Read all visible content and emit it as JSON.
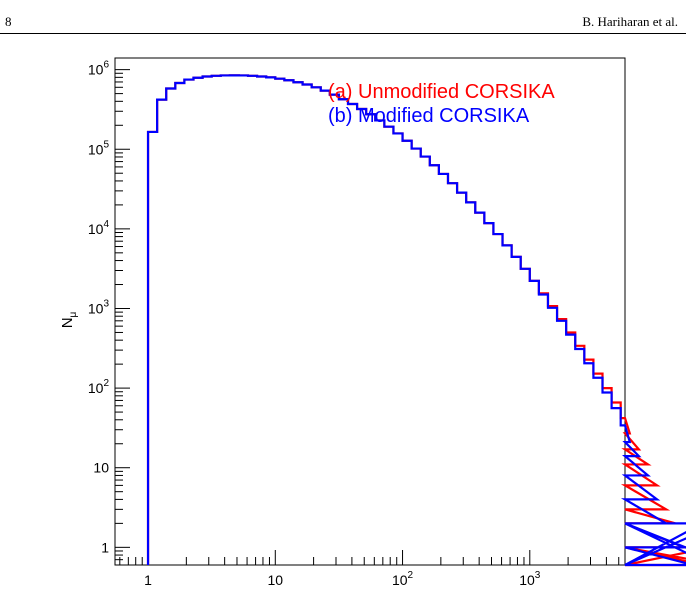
{
  "header": {
    "page_number": "8",
    "authors": "B. Hariharan et al."
  },
  "chart_data": {
    "type": "step",
    "ylabel": "N",
    "ylabel_subscript": "μ",
    "x_scale": "log",
    "y_scale": "log",
    "xlim": [
      0.55,
      5600
    ],
    "ylim": [
      0.6,
      1400000
    ],
    "x_ticks": [
      {
        "value": 1,
        "label": "1"
      },
      {
        "value": 10,
        "label": "10"
      },
      {
        "value": 100,
        "label": "10",
        "exp": "2"
      },
      {
        "value": 1000,
        "label": "10",
        "exp": "3"
      }
    ],
    "y_ticks": [
      {
        "value": 1,
        "label": "1"
      },
      {
        "value": 10,
        "label": "10"
      },
      {
        "value": 100,
        "label": "10",
        "exp": "2"
      },
      {
        "value": 1000,
        "label": "10",
        "exp": "3"
      },
      {
        "value": 10000,
        "label": "10",
        "exp": "4"
      },
      {
        "value": 100000,
        "label": "10",
        "exp": "5"
      },
      {
        "value": 1000000,
        "label": "10",
        "exp": "6"
      }
    ],
    "bins_per_decade": 14,
    "first_bin_low": 1.0,
    "legend_position": "top-right",
    "series": [
      {
        "name": "(a) Unmodified CORSIKA",
        "color": "#ff0000",
        "values": [
          165000,
          420000,
          580000,
          680000,
          750000,
          790000,
          820000,
          836000,
          845000,
          848000,
          845000,
          836000,
          820000,
          800000,
          770000,
          735000,
          695000,
          650000,
          600000,
          545000,
          485000,
          425000,
          370000,
          320000,
          275000,
          230000,
          192000,
          158000,
          128000,
          102000,
          81000,
          63000,
          49000,
          37500,
          28500,
          21500,
          16000,
          11800,
          8600,
          6200,
          4450,
          3150,
          2220,
          1550,
          1070,
          735,
          500,
          340,
          228,
          152,
          100,
          66,
          42,
          27,
          17,
          11,
          6,
          3,
          2,
          1,
          1,
          0.3,
          1,
          0.3,
          0.3
        ]
      },
      {
        "name": "(b) Modified CORSIKA",
        "color": "#0000ff",
        "values": [
          165000,
          420000,
          580000,
          680000,
          750000,
          790000,
          820000,
          836000,
          845000,
          848000,
          845000,
          836000,
          820000,
          800000,
          770000,
          735000,
          695000,
          650000,
          600000,
          545000,
          485000,
          425000,
          370000,
          320000,
          275000,
          230000,
          192000,
          158000,
          128000,
          102000,
          81000,
          63000,
          49000,
          37500,
          28500,
          21500,
          16000,
          11800,
          8600,
          6200,
          4450,
          3150,
          2220,
          1500,
          1020,
          700,
          470,
          310,
          205,
          135,
          88,
          56,
          34,
          21,
          14,
          8,
          4,
          2,
          2,
          1,
          0.3,
          2,
          0.3,
          2,
          0.3
        ]
      }
    ]
  }
}
